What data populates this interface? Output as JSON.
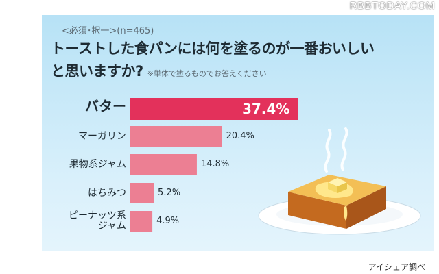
{
  "watermark": "RBBTODAY.COM",
  "header": {
    "note": "<必須･択一>(n=465)",
    "question_line1": "トーストした食パンには何を塗るのが一番おいしい",
    "question_line2": "と思いますか?",
    "question_note": "※単体で塗るものでお答えください"
  },
  "source": "アイシェア調べ",
  "colors": {
    "panel_top": "#b7e2f6",
    "panel_bottom": "#e4f4fc",
    "top_bar": "#e3315b",
    "other_bars": "#ec7f93"
  },
  "chart_data": {
    "type": "bar",
    "orientation": "horizontal",
    "categories": [
      "バター",
      "マーガリン",
      "果物系ジャム",
      "はちみつ",
      "ピーナッツ系ジャム"
    ],
    "category_lines": [
      [
        "バター"
      ],
      [
        "マーガリン"
      ],
      [
        "果物系ジャム"
      ],
      [
        "はちみつ"
      ],
      [
        "ピーナッツ系",
        "ジャム"
      ]
    ],
    "values": [
      37.4,
      20.4,
      14.8,
      5.2,
      4.9
    ],
    "value_labels": [
      "37.4%",
      "20.4%",
      "14.8%",
      "5.2%",
      "4.9%"
    ],
    "unit": "%",
    "title": "",
    "xlabel": "",
    "ylabel": "",
    "grid": false
  }
}
